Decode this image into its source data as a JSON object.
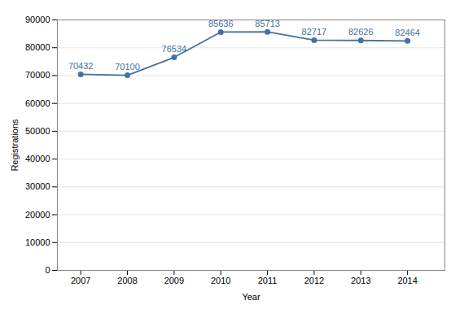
{
  "chart_data": {
    "type": "line",
    "x": [
      2007,
      2008,
      2009,
      2010,
      2011,
      2012,
      2013,
      2014
    ],
    "values": [
      70432,
      70100,
      76534,
      85636,
      85713,
      82717,
      82626,
      82464
    ],
    "color": "#4472a0",
    "marker": "circle",
    "xlabel": "Year",
    "ylabel": "Registrations",
    "xlim": [
      2006.5,
      2014.8
    ],
    "xticks": [
      2007,
      2008,
      2009,
      2010,
      2011,
      2012,
      2013,
      2014
    ],
    "ylim": [
      0,
      90000
    ],
    "yticks": [
      0,
      10000,
      20000,
      30000,
      40000,
      50000,
      60000,
      70000,
      80000,
      90000
    ],
    "grid": "y",
    "data_labels": true
  }
}
